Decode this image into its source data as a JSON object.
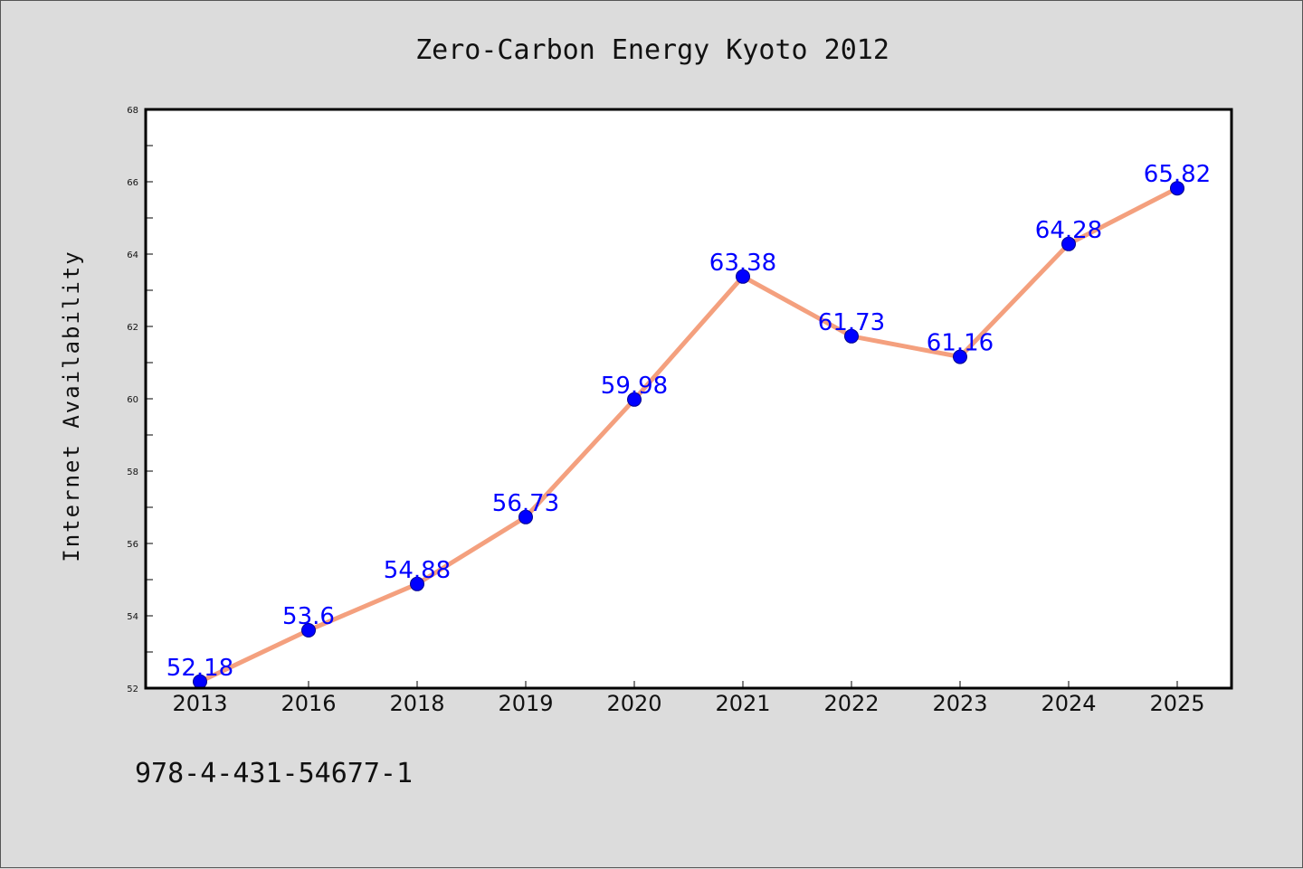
{
  "chart_data": {
    "type": "line",
    "title": "Zero-Carbon Energy Kyoto 2012",
    "xlabel": "",
    "ylabel": "Internet Availability",
    "categories": [
      "2013",
      "2016",
      "2018",
      "2019",
      "2020",
      "2021",
      "2022",
      "2023",
      "2024",
      "2025"
    ],
    "series": [
      {
        "values": [
          52.18,
          53.6,
          54.88,
          56.73,
          59.98,
          63.38,
          61.73,
          61.16,
          64.28,
          65.82
        ],
        "labels": [
          "52.18",
          "53.6",
          "54.88",
          "56.73",
          "59.98",
          "63.38",
          "61.73",
          "61.16",
          "64.28",
          "65.82"
        ]
      }
    ],
    "ylim": [
      52,
      68
    ],
    "yticks": [
      "52",
      "54",
      "56",
      "58",
      "60",
      "62",
      "64",
      "66",
      "68"
    ],
    "grid": false,
    "legend": "none",
    "colors": {
      "line": "#f4a07e",
      "marker": "#0000ff",
      "data_label": "#0000ff",
      "plot_background": "#ffffff",
      "figure_background": "#dcdcdc"
    }
  },
  "footer": {
    "text": "978-4-431-54677-1"
  }
}
